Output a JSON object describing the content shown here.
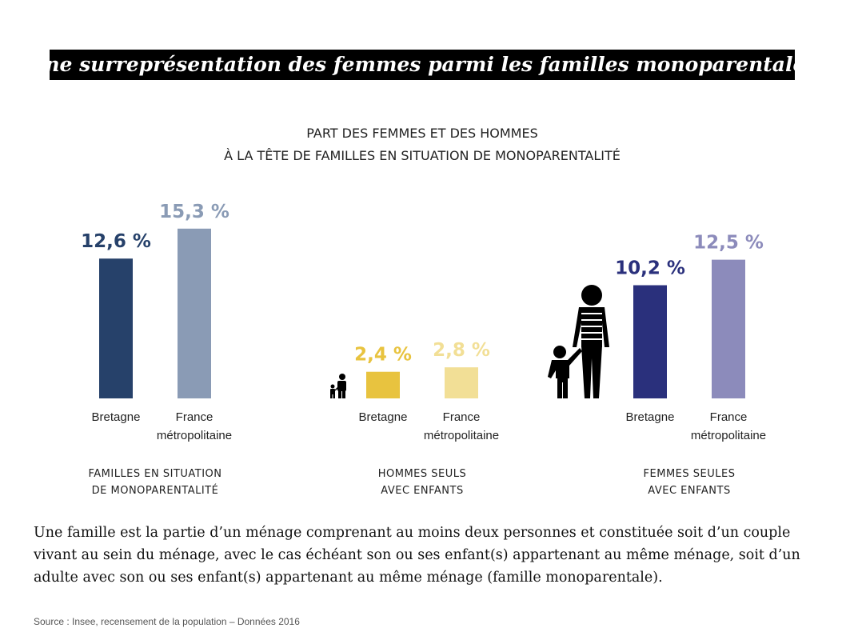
{
  "headline": "Une surreprésentation des femmes parmi les familles monoparentales",
  "chart_title": [
    "PART DES FEMMES ET DES HOMMES",
    "À LA TÊTE DE FAMILLES EN SITUATION DE MONOPARENTALITÉ"
  ],
  "chart_data": [
    {
      "type": "bar",
      "categories": [
        "Bretagne",
        "France métropolitaine"
      ],
      "values": [
        12.6,
        15.3
      ],
      "value_labels": [
        "12,6 %",
        "15,3 %"
      ],
      "colors": [
        "#26416a",
        "#8a9bb5"
      ],
      "group_label": [
        "FAMILLES EN SITUATION",
        "DE MONOPARENTALITÉ"
      ]
    },
    {
      "type": "bar",
      "categories": [
        "Bretagne",
        "France métropolitaine"
      ],
      "values": [
        2.4,
        2.8
      ],
      "value_labels": [
        "2,4 %",
        "2,8 %"
      ],
      "colors": [
        "#e8c33f",
        "#f2df96"
      ],
      "group_label": [
        "HOMMES SEULS",
        "AVEC ENFANTS"
      ]
    },
    {
      "type": "bar",
      "categories": [
        "Bretagne",
        "France métropolitaine"
      ],
      "values": [
        10.2,
        12.5
      ],
      "value_labels": [
        "10,2 %",
        "12,5 %"
      ],
      "colors": [
        "#2a307c",
        "#8c8bbb"
      ],
      "group_label": [
        "FEMMES SEULES",
        "AVEC ENFANTS"
      ]
    }
  ],
  "definition": "Une famille est la partie d’un ménage comprenant au moins deux personnes et constituée soit d’un couple vivant au sein du ménage, avec le cas échéant son ou ses enfant(s) appartenant au même ménage, soit d’un adulte avec son ou ses enfant(s) appartenant au même ménage (famille monoparentale).",
  "source": "Source : Insee, recensement de la population – Données 2016"
}
